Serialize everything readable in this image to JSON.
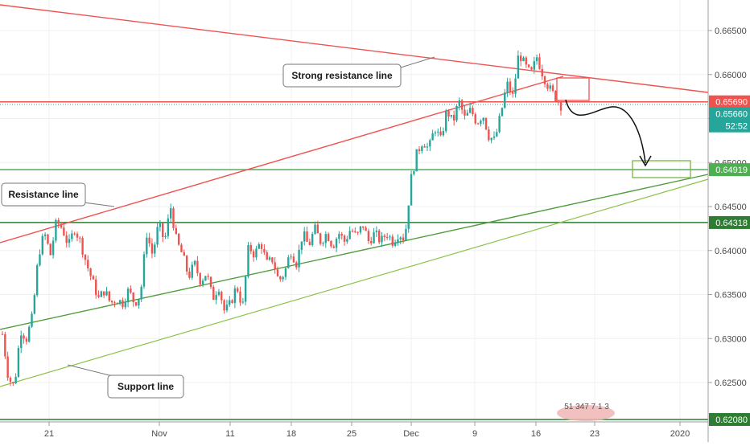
{
  "chart_data": {
    "type": "candlestick",
    "y_axis": {
      "ticks": [
        "0.66500",
        "0.66000",
        "0.65500",
        "0.65000",
        "0.64500",
        "0.64000",
        "0.63500",
        "0.63000",
        "0.62500"
      ],
      "ylim": [
        0.6198,
        0.6688
      ],
      "position": "right"
    },
    "x_axis": {
      "ticks": [
        "21",
        "Nov",
        "11",
        "18",
        "25",
        "Dec",
        "9",
        "16",
        "23",
        "2020"
      ]
    },
    "price_badges": [
      {
        "label": "0.65690",
        "value": 0.6569,
        "color": "#ef5350"
      },
      {
        "label": "0.65660",
        "value": 0.6566,
        "color": "#26a69a"
      },
      {
        "label": "52:52",
        "value": 0.6553,
        "color": "#26a69a"
      },
      {
        "label": "0.64919",
        "value": 0.64919,
        "color": "#4caf50"
      },
      {
        "label": "0.64318",
        "value": 0.64318,
        "color": "#2e7d32"
      },
      {
        "label": "0.62080",
        "value": 0.6208,
        "color": "#2e7d32"
      }
    ],
    "horizontal_levels": [
      {
        "value": 0.6569,
        "color": "#ef5350",
        "style": "solid"
      },
      {
        "value": 0.6566,
        "color": "#26a69a",
        "style": "dotted"
      },
      {
        "value": 0.64919,
        "color": "#4caf50",
        "style": "solid"
      },
      {
        "value": 0.64318,
        "color": "#2e7d32",
        "style": "solid"
      },
      {
        "value": 0.6208,
        "color": "#2e7d32",
        "style": "solid"
      }
    ],
    "annotations": [
      {
        "text": "Strong resistance line"
      },
      {
        "text": "Resistance line"
      },
      {
        "text": "Support line"
      }
    ],
    "watermark_text": "51 347 7 1 3",
    "candle_path": [
      [
        0.6305,
        1
      ],
      [
        0.6255,
        1
      ],
      [
        0.6245,
        1
      ],
      [
        0.631,
        1
      ],
      [
        0.63,
        1
      ],
      [
        0.6325,
        0
      ],
      [
        0.6395,
        1
      ],
      [
        0.642,
        1
      ],
      [
        0.6395,
        0
      ],
      [
        0.6433,
        1
      ],
      [
        0.6425,
        0
      ],
      [
        0.6405,
        0
      ],
      [
        0.6425,
        1
      ],
      [
        0.641,
        0
      ],
      [
        0.6385,
        0
      ],
      [
        0.6365,
        0
      ],
      [
        0.6345,
        0
      ],
      [
        0.6355,
        1
      ],
      [
        0.634,
        0
      ],
      [
        0.6345,
        1
      ],
      [
        0.634,
        0
      ],
      [
        0.6355,
        1
      ],
      [
        0.634,
        0
      ],
      [
        0.635,
        1
      ],
      [
        0.642,
        1
      ],
      [
        0.6395,
        0
      ],
      [
        0.643,
        1
      ],
      [
        0.641,
        0
      ],
      [
        0.645,
        1
      ],
      [
        0.641,
        0
      ],
      [
        0.6395,
        0
      ],
      [
        0.637,
        0
      ],
      [
        0.6385,
        1
      ],
      [
        0.6365,
        0
      ],
      [
        0.6375,
        1
      ],
      [
        0.6345,
        0
      ],
      [
        0.636,
        1
      ],
      [
        0.633,
        0
      ],
      [
        0.634,
        1
      ],
      [
        0.636,
        1
      ],
      [
        0.6335,
        0
      ],
      [
        0.6405,
        1
      ],
      [
        0.6395,
        0
      ],
      [
        0.641,
        1
      ],
      [
        0.6385,
        0
      ],
      [
        0.639,
        1
      ],
      [
        0.6365,
        0
      ],
      [
        0.6375,
        1
      ],
      [
        0.64,
        1
      ],
      [
        0.6385,
        0
      ],
      [
        0.642,
        1
      ],
      [
        0.6405,
        0
      ],
      [
        0.6425,
        1
      ],
      [
        0.641,
        0
      ],
      [
        0.642,
        1
      ],
      [
        0.6405,
        0
      ],
      [
        0.642,
        1
      ],
      [
        0.641,
        0
      ],
      [
        0.6425,
        1
      ],
      [
        0.6415,
        0
      ],
      [
        0.643,
        1
      ],
      [
        0.641,
        0
      ],
      [
        0.642,
        1
      ],
      [
        0.641,
        0
      ],
      [
        0.642,
        1
      ],
      [
        0.641,
        0
      ],
      [
        0.642,
        1
      ],
      [
        0.6413,
        0
      ],
      [
        0.648,
        1
      ],
      [
        0.651,
        1
      ],
      [
        0.6525,
        1
      ],
      [
        0.6515,
        0
      ],
      [
        0.654,
        1
      ],
      [
        0.6525,
        0
      ],
      [
        0.656,
        1
      ],
      [
        0.6545,
        0
      ],
      [
        0.657,
        1
      ],
      [
        0.655,
        0
      ],
      [
        0.656,
        1
      ],
      [
        0.6545,
        0
      ],
      [
        0.6555,
        1
      ],
      [
        0.653,
        0
      ],
      [
        0.6525,
        0
      ],
      [
        0.6555,
        1
      ],
      [
        0.659,
        1
      ],
      [
        0.6575,
        0
      ],
      [
        0.6625,
        1
      ],
      [
        0.661,
        0
      ],
      [
        0.66,
        0
      ],
      [
        0.662,
        1
      ],
      [
        0.66,
        0
      ],
      [
        0.6585,
        0
      ],
      [
        0.6575,
        0
      ],
      [
        0.6565,
        0
      ]
    ]
  }
}
